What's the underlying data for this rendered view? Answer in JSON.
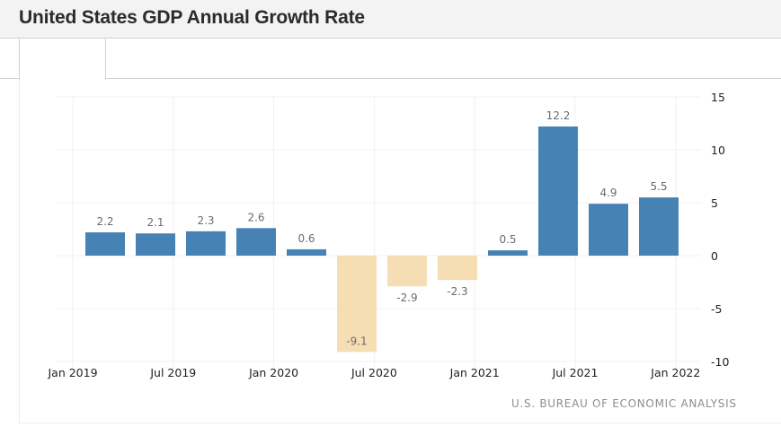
{
  "header": {
    "title": "United States GDP Annual Growth Rate"
  },
  "tabs": [
    {
      "label": "",
      "active": true
    }
  ],
  "source": "U.S. BUREAU OF ECONOMIC ANALYSIS",
  "colors": {
    "positive": "#4682b4",
    "negative": "#f5deb3",
    "gridline": "#f0f0f0",
    "axis_text": "#222222",
    "label_text": "#6b6b6b"
  },
  "chart_data": {
    "type": "bar",
    "title": "United States GDP Annual Growth Rate",
    "xlabel": "",
    "ylabel": "",
    "categories": [
      "2019 Q1",
      "2019 Q2",
      "2019 Q3",
      "2019 Q4",
      "2020 Q1",
      "2020 Q2",
      "2020 Q3",
      "2020 Q4",
      "2021 Q1",
      "2021 Q2",
      "2021 Q3",
      "2021 Q4"
    ],
    "values": [
      2.2,
      2.1,
      2.3,
      2.6,
      0.6,
      -9.1,
      -2.9,
      -2.3,
      0.5,
      12.2,
      4.9,
      5.5
    ],
    "value_labels": [
      "2.2",
      "2.1",
      "2.3",
      "2.6",
      "0.6",
      "-9.1",
      "-2.9",
      "-2.3",
      "0.5",
      "12.2",
      "4.9",
      "5.5"
    ],
    "x_ticks": [
      "Jan 2019",
      "Jul 2019",
      "Jan 2020",
      "Jul 2020",
      "Jan 2021",
      "Jul 2021",
      "Jan 2022"
    ],
    "y_ticks": [
      15,
      10,
      5,
      0,
      -5,
      -10
    ],
    "y_tick_labels": [
      "15",
      "10",
      "5",
      "0",
      "-5",
      "-10"
    ],
    "ylim": [
      -10,
      15
    ],
    "y_axis_side": "right",
    "grid": true,
    "legend": "none",
    "source": "U.S. BUREAU OF ECONOMIC ANALYSIS"
  }
}
